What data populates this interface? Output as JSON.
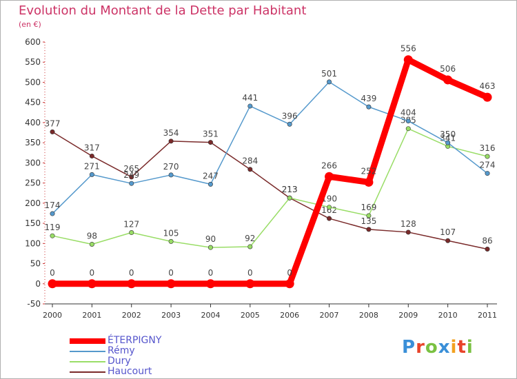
{
  "header": {
    "title": "Evolution du Montant de la Dette par Habitant",
    "unit": "(en €)"
  },
  "logo": {
    "text": "Proxiti",
    "colors": [
      "#3a8fd8",
      "#e8442a",
      "#7ac142",
      "#3a8fd8",
      "#f2a120",
      "#e8442a",
      "#7ac142"
    ]
  },
  "chart_data": {
    "type": "line",
    "title": "Evolution du Montant de la Dette par Habitant",
    "ylabel": "(en €)",
    "ylim": [
      -50,
      600
    ],
    "yticks": [
      -50,
      0,
      50,
      100,
      150,
      200,
      250,
      300,
      350,
      400,
      450,
      500,
      550,
      600
    ],
    "x": [
      "2000",
      "2001",
      "2002",
      "2003",
      "2004",
      "2005",
      "2006",
      "2007",
      "2008",
      "2009",
      "2010",
      "2011"
    ],
    "grid": false,
    "legend_position": "bottom-left",
    "series": [
      {
        "name": "Haucourt",
        "color": "#7a2a2a",
        "values": [
          377,
          317,
          265,
          354,
          351,
          284,
          213,
          162,
          135,
          128,
          107,
          86
        ]
      },
      {
        "name": "Dury",
        "color": "#99dd66",
        "values": [
          119,
          98,
          127,
          105,
          90,
          92,
          213,
          190,
          169,
          385,
          341,
          316
        ]
      },
      {
        "name": "Rémy",
        "color": "#5599cc",
        "values": [
          174,
          271,
          249,
          270,
          247,
          441,
          396,
          501,
          439,
          404,
          350,
          274
        ]
      },
      {
        "name": "ÉTERPIGNY",
        "color": "#ff0000",
        "values": [
          0,
          0,
          0,
          0,
          0,
          0,
          0,
          266,
          252,
          556,
          506,
          463
        ]
      }
    ],
    "legend_order": [
      "ÉTERPIGNY",
      "Rémy",
      "Dury",
      "Haucourt"
    ]
  }
}
